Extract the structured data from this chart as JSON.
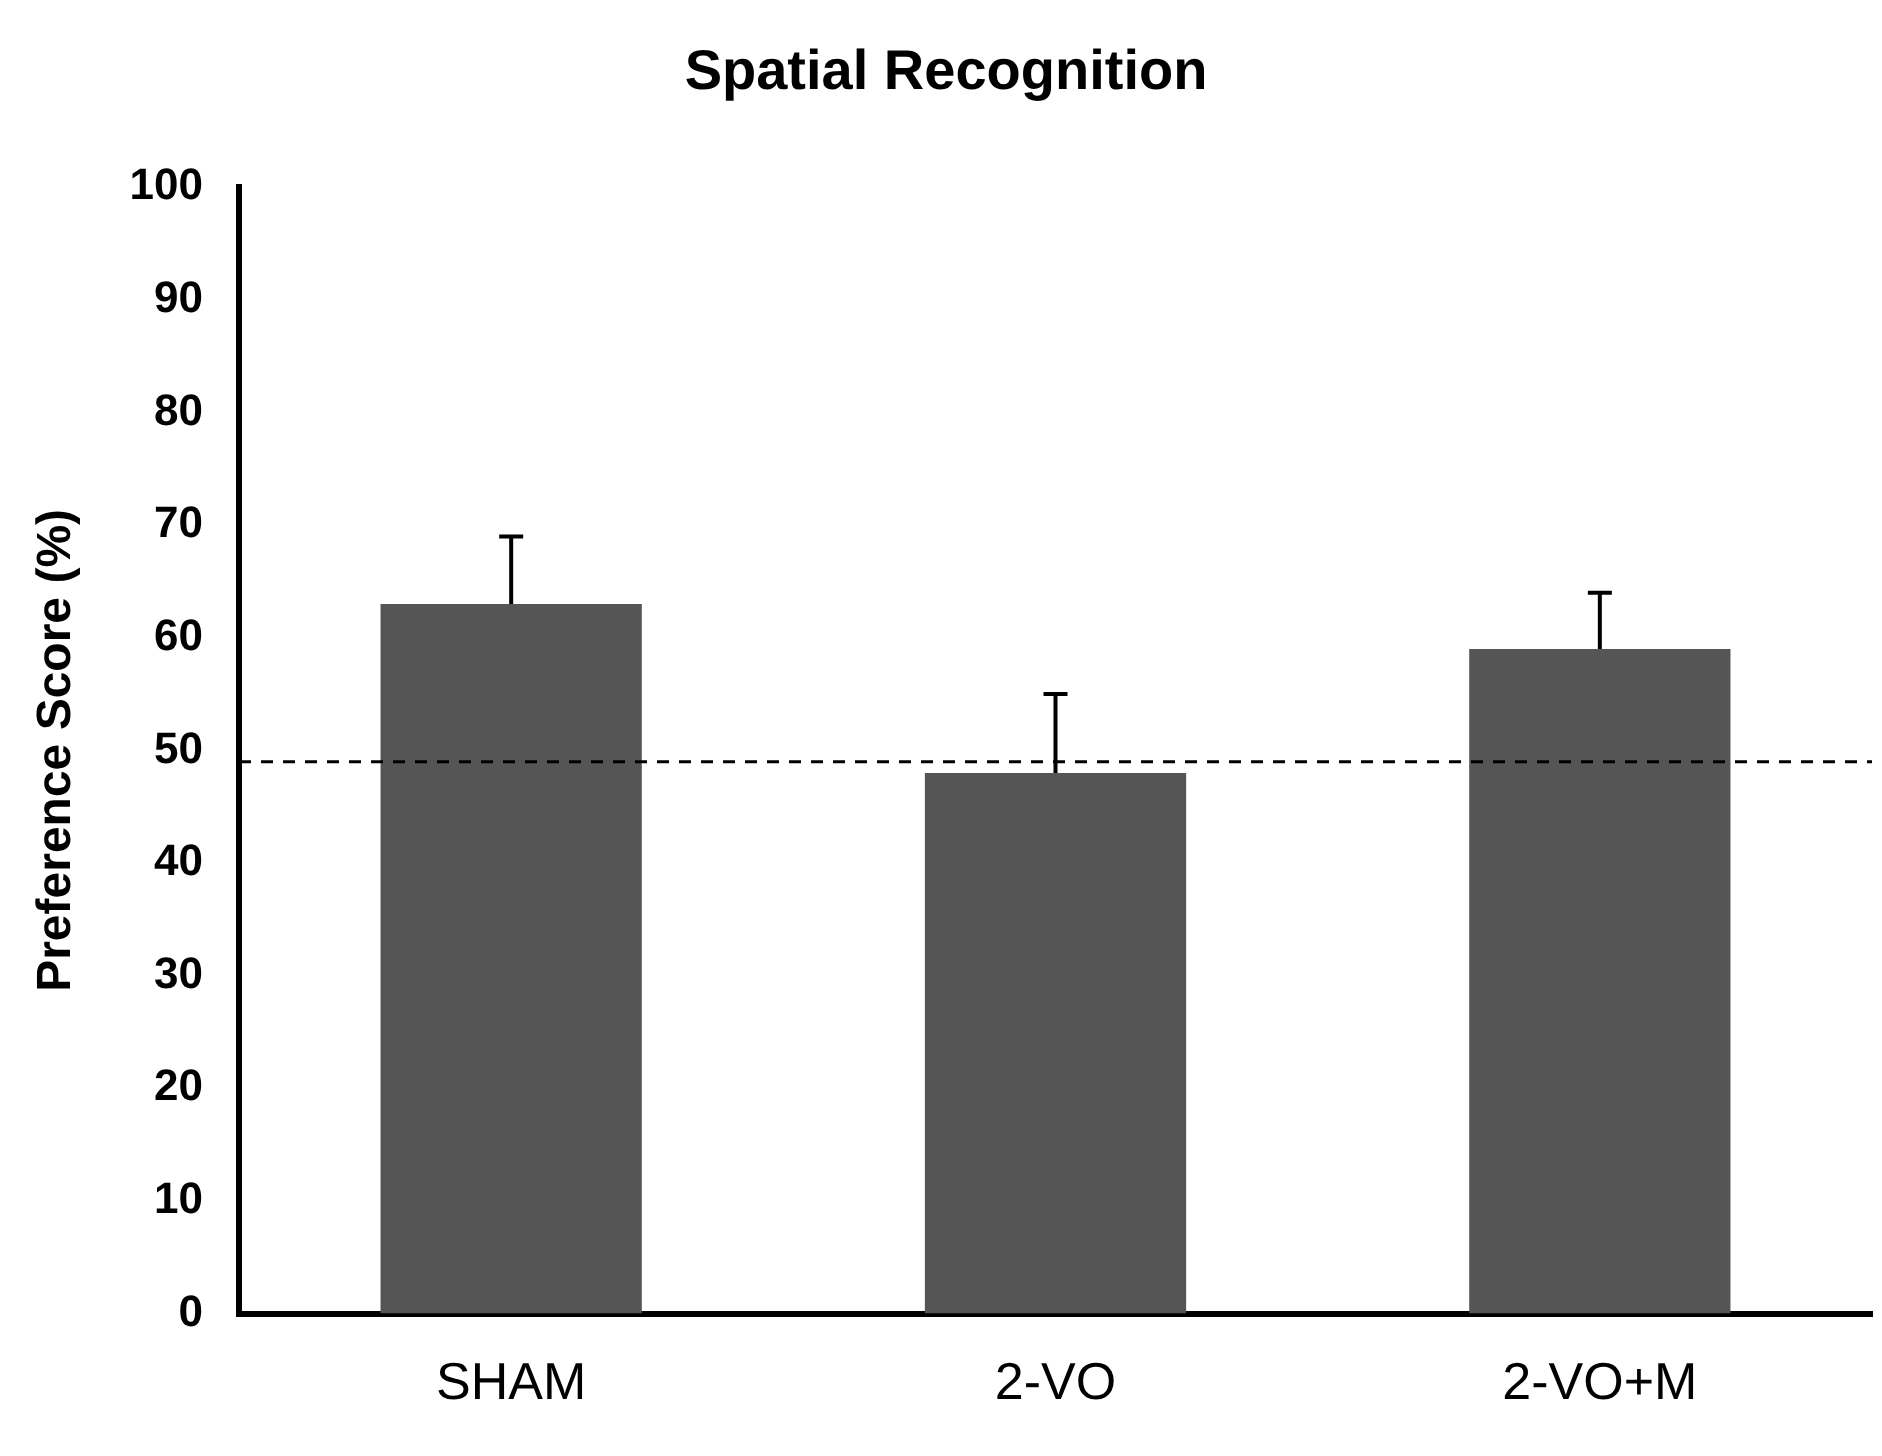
{
  "chart_data": {
    "type": "bar",
    "title": "Spatial Recognition",
    "ylabel": "Preference Score (%)",
    "categories": [
      "SHAM",
      "2-VO",
      "2-VO+M"
    ],
    "values": [
      63,
      48,
      59
    ],
    "color": "#555555",
    "errors": [
      [
        63,
        69
      ],
      [
        48,
        55
      ],
      [
        59,
        64
      ]
    ],
    "ylim": [
      0,
      100
    ],
    "yticks": [
      0,
      10,
      20,
      30,
      40,
      50,
      60,
      70,
      80,
      90,
      100
    ],
    "grid": false,
    "legend": false,
    "ref_lines": [
      {
        "axis": "y",
        "value": 49,
        "color": "#000000",
        "line_style": "dashed"
      }
    ]
  }
}
